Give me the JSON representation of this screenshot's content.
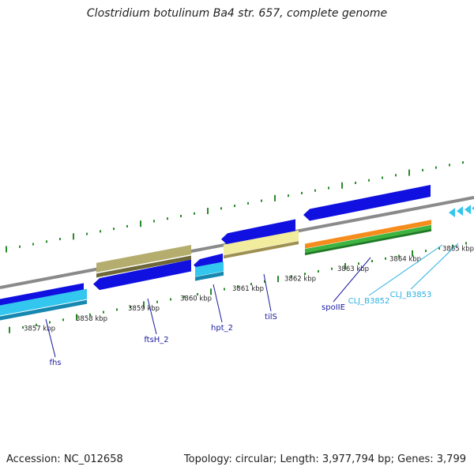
{
  "title": "Clostridium botulinum Ba4 str. 657, complete genome",
  "footer": {
    "accession": "Accession: NC_012658",
    "summary": "Topology: circular; Length: 3,977,794 bp; Genes: 3,799"
  },
  "colors": {
    "backbone": "#8a8a8a",
    "cds_forward": "#1010e0",
    "cds_light": "#33c6ee",
    "cds_khaki": "#b5ad6e",
    "cds_cream": "#f2ec9e",
    "rrna_orange": "#f58c1c",
    "rrna_green": "#3cb440",
    "tick_green": "#2a8a2a",
    "label_dark": "#1a1aa0",
    "label_light": "#2ab0e0"
  },
  "scale_labels": [
    "3857 kbp",
    "3858 kbp",
    "3859 kbp",
    "3860 kbp",
    "3861 kbp",
    "3862 kbp",
    "3863 kbp",
    "3864 kbp",
    "3865 kbp"
  ],
  "gene_labels": [
    {
      "name": "fhs",
      "color": "label_dark"
    },
    {
      "name": "ftsH_2",
      "color": "label_dark"
    },
    {
      "name": "hpt_2",
      "color": "label_dark"
    },
    {
      "name": "tilS",
      "color": "label_dark"
    },
    {
      "name": "spoIIE",
      "color": "label_dark"
    },
    {
      "name": "CLJ_B3852",
      "color": "label_light"
    },
    {
      "name": "CLJ_B3853",
      "color": "label_light"
    }
  ]
}
